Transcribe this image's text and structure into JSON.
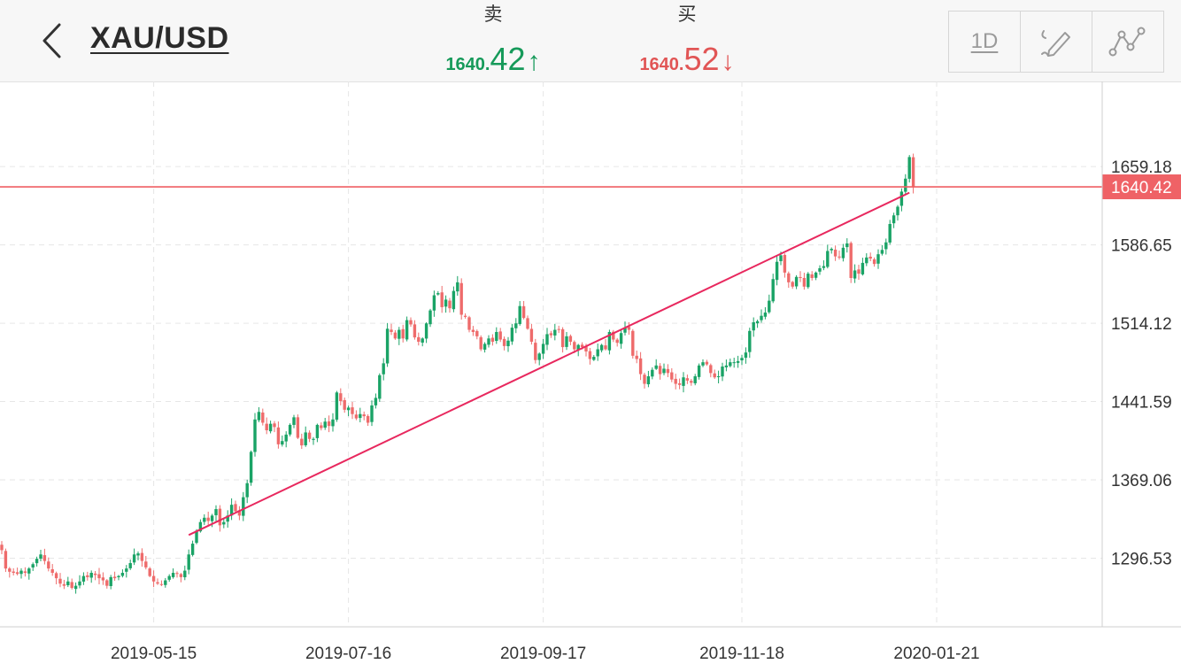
{
  "header": {
    "symbol": "XAU/USD",
    "sell": {
      "label": "卖",
      "price_int": "1640.",
      "price_frac": "42",
      "arrow": "↑",
      "color": "#169a5a"
    },
    "buy": {
      "label": "买",
      "price_int": "1640.",
      "price_frac": "52",
      "arrow": "↓",
      "color": "#e15555"
    },
    "toolbar": {
      "interval": "1D"
    }
  },
  "colors": {
    "up": "#1aa366",
    "down": "#ee6b6b",
    "trendline": "#e8285e",
    "price_line": "#ef5f63",
    "price_tag": "#ef6266"
  },
  "price_tag": "1640.42",
  "chart_data": {
    "type": "candlestick",
    "y_tick_labels": [
      "1659.18",
      "1586.65",
      "1514.12",
      "1441.59",
      "1369.06",
      "1296.53"
    ],
    "x_tick_labels": [
      "2019-05-15",
      "2019-07-16",
      "2019-09-17",
      "2019-11-18",
      "2020-01-21"
    ],
    "ylim": [
      1233,
      1738
    ],
    "current_price": 1640.42,
    "grid": true,
    "trendline": {
      "from": {
        "date": "2019-05-25",
        "price": 1318
      },
      "to": {
        "date": "2020-02-24",
        "price": 1635
      }
    },
    "close_series": [
      1304,
      1287,
      1284,
      1283,
      1282,
      1285,
      1283,
      1287,
      1291,
      1296,
      1300,
      1294,
      1287,
      1283,
      1278,
      1273,
      1271,
      1275,
      1269,
      1271,
      1275,
      1280,
      1279,
      1283,
      1281,
      1278,
      1276,
      1271,
      1279,
      1278,
      1280,
      1283,
      1287,
      1292,
      1300,
      1301,
      1294,
      1288,
      1280,
      1275,
      1273,
      1272,
      1276,
      1280,
      1283,
      1282,
      1279,
      1285,
      1300,
      1310,
      1322,
      1330,
      1334,
      1331,
      1336,
      1342,
      1327,
      1330,
      1336,
      1346,
      1340,
      1336,
      1353,
      1366,
      1395,
      1425,
      1432,
      1422,
      1415,
      1421,
      1418,
      1402,
      1405,
      1411,
      1420,
      1427,
      1408,
      1401,
      1413,
      1407,
      1407,
      1420,
      1417,
      1423,
      1419,
      1425,
      1450,
      1442,
      1434,
      1436,
      1430,
      1426,
      1430,
      1428,
      1422,
      1438,
      1445,
      1466,
      1477,
      1509,
      1506,
      1500,
      1508,
      1500,
      1517,
      1513,
      1501,
      1497,
      1500,
      1514,
      1526,
      1540,
      1542,
      1529,
      1536,
      1528,
      1544,
      1552,
      1522,
      1520,
      1508,
      1506,
      1502,
      1490,
      1495,
      1500,
      1497,
      1506,
      1499,
      1493,
      1498,
      1510,
      1514,
      1530,
      1519,
      1509,
      1497,
      1480,
      1486,
      1495,
      1504,
      1503,
      1508,
      1508,
      1492,
      1502,
      1497,
      1490,
      1494,
      1492,
      1488,
      1481,
      1483,
      1490,
      1494,
      1490,
      1506,
      1499,
      1496,
      1505,
      1510,
      1508,
      1484,
      1481,
      1467,
      1458,
      1465,
      1471,
      1475,
      1467,
      1472,
      1468,
      1462,
      1458,
      1457,
      1464,
      1461,
      1459,
      1465,
      1475,
      1478,
      1476,
      1468,
      1464,
      1465,
      1474,
      1475,
      1478,
      1478,
      1479,
      1482,
      1487,
      1507,
      1515,
      1516,
      1521,
      1524,
      1535,
      1555,
      1571,
      1577,
      1561,
      1552,
      1548,
      1557,
      1556,
      1548,
      1560,
      1556,
      1561,
      1565,
      1567,
      1581,
      1583,
      1576,
      1575,
      1584,
      1588,
      1556,
      1563,
      1560,
      1570,
      1575,
      1574,
      1569,
      1578,
      1582,
      1589,
      1606,
      1614,
      1622,
      1636,
      1648,
      1668,
      1640
    ]
  }
}
